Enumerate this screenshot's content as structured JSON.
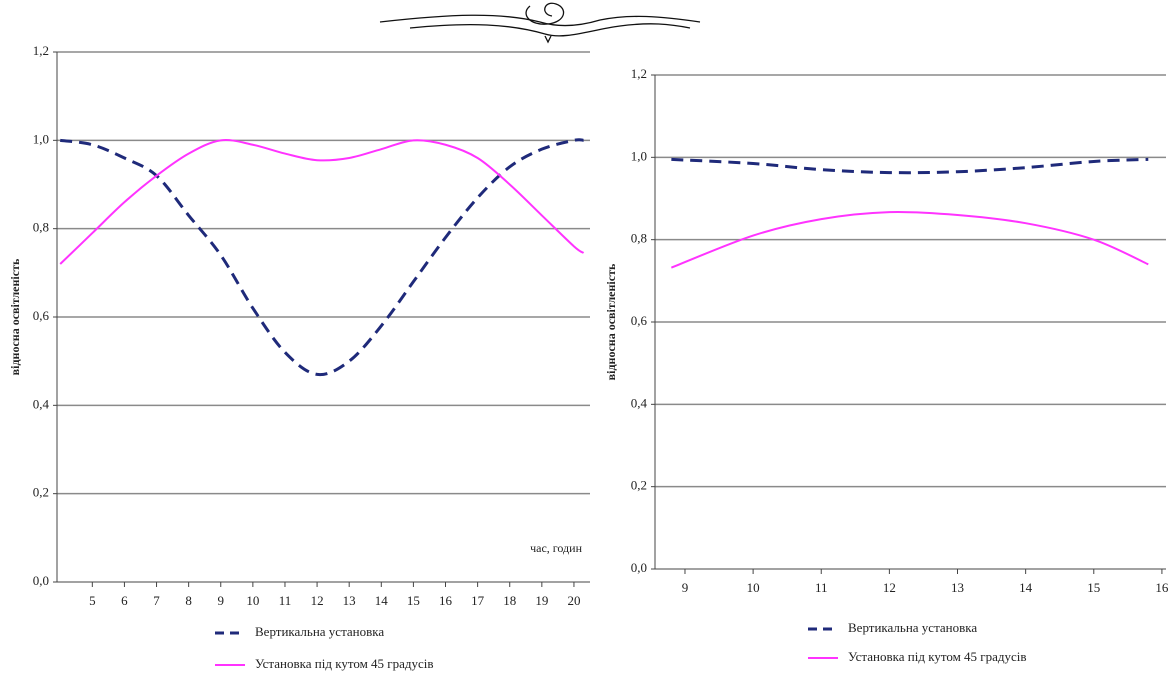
{
  "chart_data": [
    {
      "type": "line",
      "ylabel": "відносна освітленість",
      "annotation": "час, годин",
      "x": [
        4,
        5,
        6,
        7,
        8,
        9,
        10,
        11,
        12,
        13,
        14,
        15,
        16,
        17,
        18,
        19,
        20,
        20.3
      ],
      "xlim": [
        3.9,
        20.5
      ],
      "xticks": [
        5,
        6,
        7,
        8,
        9,
        10,
        11,
        12,
        13,
        14,
        15,
        16,
        17,
        18,
        19,
        20
      ],
      "ylim": [
        0,
        1.2
      ],
      "yticks": [
        {
          "value": 0,
          "label": "0,0"
        },
        {
          "value": 0.2,
          "label": "0,2"
        },
        {
          "value": 0.4,
          "label": "0,4"
        },
        {
          "value": 0.6,
          "label": "0,6"
        },
        {
          "value": 0.8,
          "label": "0,8"
        },
        {
          "value": 1.0,
          "label": "1,0"
        },
        {
          "value": 1.2,
          "label": "1,2"
        }
      ],
      "grid": true,
      "legend": "bottom",
      "series": [
        {
          "name": "Вертикальна установка",
          "color": "#1f2a7a",
          "style": "dashed",
          "values": [
            1.0,
            0.99,
            0.96,
            0.92,
            0.83,
            0.74,
            0.62,
            0.52,
            0.47,
            0.5,
            0.58,
            0.68,
            0.78,
            0.87,
            0.94,
            0.98,
            1.0,
            1.0
          ]
        },
        {
          "name": "Установка під кутом 45 градусів",
          "color": "#ff33ff",
          "style": "solid",
          "values": [
            0.72,
            0.79,
            0.86,
            0.92,
            0.97,
            1.0,
            0.99,
            0.97,
            0.955,
            0.96,
            0.98,
            1.0,
            0.99,
            0.96,
            0.9,
            0.83,
            0.76,
            0.745
          ]
        }
      ]
    },
    {
      "type": "line",
      "ylabel": "відносна освітленість",
      "x": [
        8.8,
        10,
        11,
        12,
        13,
        14,
        15,
        15.8
      ],
      "xlim": [
        8.56,
        16.06
      ],
      "xticks": [
        9,
        10,
        11,
        12,
        13,
        14,
        15,
        16
      ],
      "ylim": [
        0,
        1.2
      ],
      "yticks": [
        {
          "value": 0,
          "label": "0,0"
        },
        {
          "value": 0.2,
          "label": "0,2"
        },
        {
          "value": 0.4,
          "label": "0,4"
        },
        {
          "value": 0.6,
          "label": "0,6"
        },
        {
          "value": 0.8,
          "label": "0,8"
        },
        {
          "value": 1.0,
          "label": "1,0"
        },
        {
          "value": 1.2,
          "label": "1,2"
        }
      ],
      "grid": true,
      "legend": "bottom",
      "series": [
        {
          "name": "Вертикальна установка",
          "color": "#1f2a7a",
          "style": "dashed",
          "values": [
            0.995,
            0.985,
            0.97,
            0.963,
            0.965,
            0.975,
            0.99,
            0.995
          ]
        },
        {
          "name": "Установка під кутом 45 градусів",
          "color": "#ff33ff",
          "style": "solid",
          "values": [
            0.732,
            0.81,
            0.85,
            0.867,
            0.86,
            0.84,
            0.8,
            0.74
          ]
        }
      ]
    }
  ]
}
